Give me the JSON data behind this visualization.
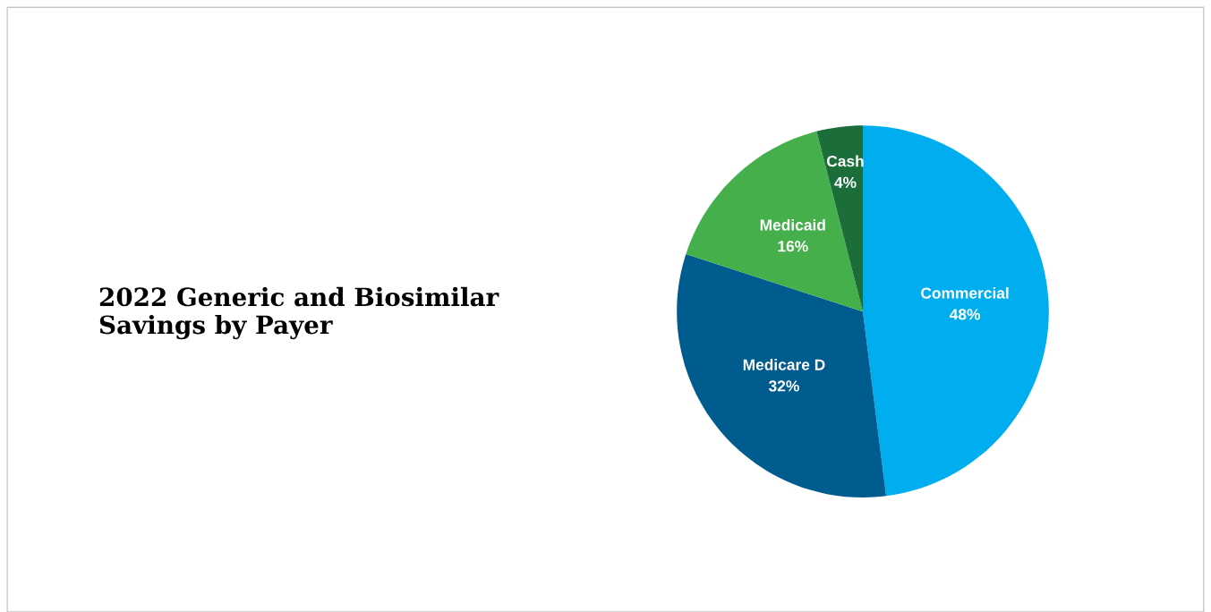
{
  "chart_data": {
    "type": "pie",
    "title": "2022 Generic and Biosimilar\nSavings by Payer",
    "categories": [
      "Commercial",
      "Medicare D",
      "Medicaid",
      "Cash"
    ],
    "values": [
      48,
      32,
      16,
      4
    ],
    "value_labels": [
      "48%",
      "32%",
      "16%",
      "4%"
    ],
    "colors": [
      "#00aeef",
      "#005b8f",
      "#45b04b",
      "#1b6d3a"
    ]
  }
}
